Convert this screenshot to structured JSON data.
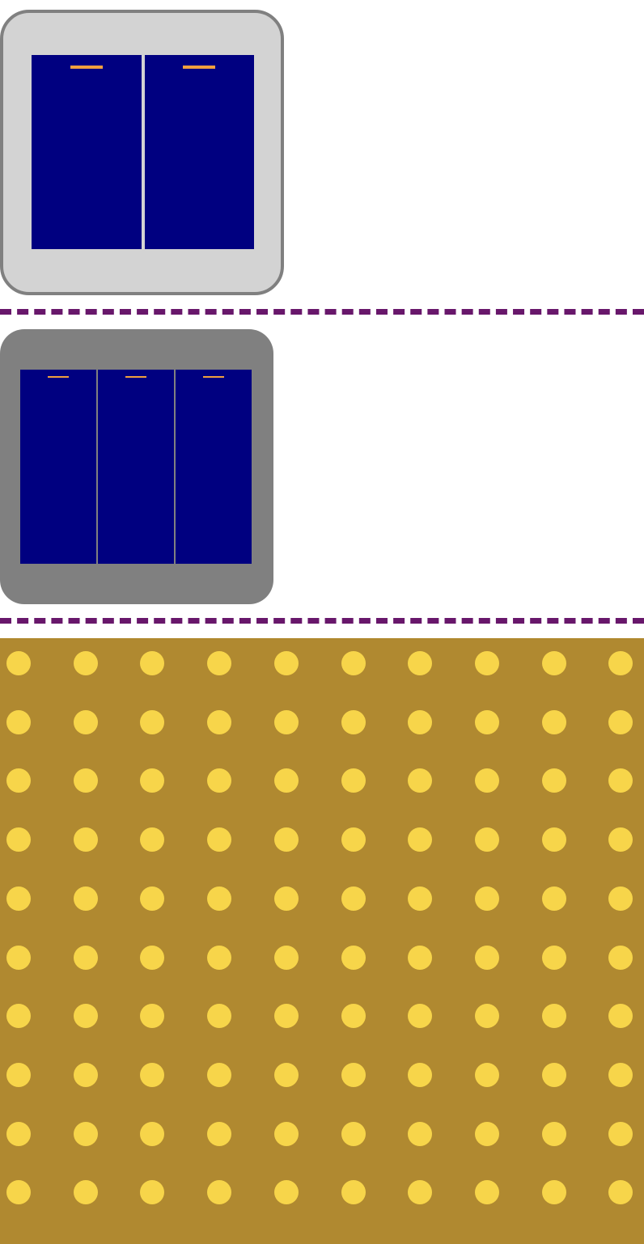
{
  "colors": {
    "background": "#ffffff",
    "plate_light": "#d3d3d3",
    "plate_dark": "#808080",
    "rocker": "#000080",
    "indicator": "#f0a040",
    "divider": "#68176b",
    "dot_panel": "#b08930",
    "dot": "#f7d54a"
  },
  "switch_plates": [
    {
      "name": "double-switch-plate",
      "rocker_count": 2
    },
    {
      "name": "triple-switch-plate",
      "rocker_count": 3
    }
  ],
  "dot_pattern": {
    "columns": 10,
    "rows": 10
  }
}
